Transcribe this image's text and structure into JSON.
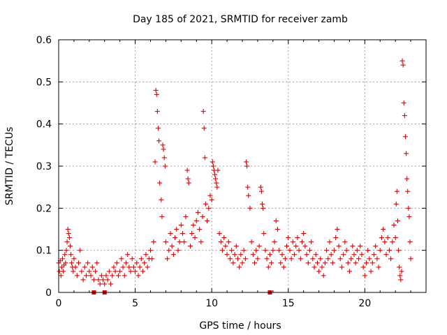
{
  "chart_data": {
    "type": "scatter",
    "title": "Day 185 of 2021, SRMTID for receiver zamb",
    "xlabel": "GPS time / hours",
    "ylabel": "SRMTID / TECUs",
    "xlim": [
      0,
      24
    ],
    "ylim": [
      0,
      0.6
    ],
    "xticks": [
      0,
      5,
      10,
      15,
      20
    ],
    "yticks": [
      0,
      0.1,
      0.2,
      0.3,
      0.4,
      0.5,
      0.6
    ],
    "xtick_labels": [
      "0",
      "5",
      "10",
      "15",
      "20"
    ],
    "ytick_labels": [
      "0",
      "0.1",
      "0.2",
      "0.3",
      "0.4",
      "0.5",
      "0.6"
    ],
    "grid": true,
    "marker": "plus",
    "series": [
      {
        "name": "SRMTID",
        "color": "#e00000",
        "points": [
          [
            0.0,
            0.07
          ],
          [
            0.05,
            0.05
          ],
          [
            0.1,
            0.075
          ],
          [
            0.15,
            0.04
          ],
          [
            0.2,
            0.06
          ],
          [
            0.25,
            0.08
          ],
          [
            0.3,
            0.05
          ],
          [
            0.35,
            0.065
          ],
          [
            0.4,
            0.09
          ],
          [
            0.45,
            0.07
          ],
          [
            0.5,
            0.1
          ],
          [
            0.55,
            0.12
          ],
          [
            0.6,
            0.15
          ],
          [
            0.65,
            0.14
          ],
          [
            0.7,
            0.13
          ],
          [
            0.75,
            0.11
          ],
          [
            0.8,
            0.09
          ],
          [
            0.85,
            0.07
          ],
          [
            0.9,
            0.06
          ],
          [
            0.95,
            0.05
          ],
          [
            1.0,
            0.08
          ],
          [
            1.1,
            0.06
          ],
          [
            1.2,
            0.04
          ],
          [
            1.3,
            0.07
          ],
          [
            1.4,
            0.1
          ],
          [
            1.5,
            0.05
          ],
          [
            1.6,
            0.03
          ],
          [
            1.7,
            0.06
          ],
          [
            1.8,
            0.04
          ],
          [
            1.9,
            0.07
          ],
          [
            2.0,
            0.05
          ],
          [
            2.1,
            0.04
          ],
          [
            2.2,
            0.06
          ],
          [
            2.3,
            0.03
          ],
          [
            2.4,
            0.05
          ],
          [
            2.5,
            0.07
          ],
          [
            2.6,
            0.03
          ],
          [
            2.7,
            0.02
          ],
          [
            2.8,
            0.04
          ],
          [
            2.9,
            0.03
          ],
          [
            3.0,
            0.02
          ],
          [
            3.1,
            0.04
          ],
          [
            3.2,
            0.03
          ],
          [
            3.3,
            0.05
          ],
          [
            3.4,
            0.02
          ],
          [
            3.5,
            0.04
          ],
          [
            3.6,
            0.06
          ],
          [
            3.7,
            0.05
          ],
          [
            3.8,
            0.07
          ],
          [
            3.9,
            0.04
          ],
          [
            4.0,
            0.05
          ],
          [
            4.1,
            0.08
          ],
          [
            4.2,
            0.06
          ],
          [
            4.3,
            0.04
          ],
          [
            4.4,
            0.07
          ],
          [
            4.5,
            0.09
          ],
          [
            4.6,
            0.06
          ],
          [
            4.7,
            0.05
          ],
          [
            4.8,
            0.08
          ],
          [
            4.9,
            0.06
          ],
          [
            5.0,
            0.05
          ],
          [
            5.1,
            0.07
          ],
          [
            5.2,
            0.04
          ],
          [
            5.3,
            0.06
          ],
          [
            5.4,
            0.08
          ],
          [
            5.5,
            0.05
          ],
          [
            5.6,
            0.07
          ],
          [
            5.7,
            0.09
          ],
          [
            5.8,
            0.06
          ],
          [
            5.9,
            0.08
          ],
          [
            6.0,
            0.1
          ],
          [
            6.1,
            0.08
          ],
          [
            6.2,
            0.12
          ],
          [
            6.3,
            0.31
          ],
          [
            6.35,
            0.48
          ],
          [
            6.4,
            0.47
          ],
          [
            6.45,
            0.43
          ],
          [
            6.5,
            0.39
          ],
          [
            6.55,
            0.36
          ],
          [
            6.6,
            0.26
          ],
          [
            6.7,
            0.22
          ],
          [
            6.75,
            0.18
          ],
          [
            6.8,
            0.35
          ],
          [
            6.85,
            0.34
          ],
          [
            6.9,
            0.32
          ],
          [
            6.95,
            0.3
          ],
          [
            7.0,
            0.12
          ],
          [
            7.1,
            0.08
          ],
          [
            7.2,
            0.1
          ],
          [
            7.3,
            0.14
          ],
          [
            7.4,
            0.11
          ],
          [
            7.5,
            0.09
          ],
          [
            7.6,
            0.13
          ],
          [
            7.7,
            0.15
          ],
          [
            7.8,
            0.1
          ],
          [
            7.9,
            0.12
          ],
          [
            8.0,
            0.16
          ],
          [
            8.1,
            0.14
          ],
          [
            8.2,
            0.12
          ],
          [
            8.3,
            0.18
          ],
          [
            8.4,
            0.29
          ],
          [
            8.45,
            0.27
          ],
          [
            8.5,
            0.26
          ],
          [
            8.6,
            0.11
          ],
          [
            8.7,
            0.14
          ],
          [
            8.8,
            0.16
          ],
          [
            8.9,
            0.13
          ],
          [
            9.0,
            0.17
          ],
          [
            9.1,
            0.19
          ],
          [
            9.2,
            0.15
          ],
          [
            9.3,
            0.12
          ],
          [
            9.4,
            0.18
          ],
          [
            9.45,
            0.43
          ],
          [
            9.5,
            0.39
          ],
          [
            9.55,
            0.32
          ],
          [
            9.6,
            0.21
          ],
          [
            9.7,
            0.17
          ],
          [
            9.8,
            0.2
          ],
          [
            9.9,
            0.23
          ],
          [
            10.0,
            0.22
          ],
          [
            10.05,
            0.31
          ],
          [
            10.1,
            0.3
          ],
          [
            10.15,
            0.29
          ],
          [
            10.2,
            0.28
          ],
          [
            10.25,
            0.27
          ],
          [
            10.3,
            0.26
          ],
          [
            10.35,
            0.25
          ],
          [
            10.4,
            0.29
          ],
          [
            10.5,
            0.14
          ],
          [
            10.6,
            0.12
          ],
          [
            10.7,
            0.1
          ],
          [
            10.8,
            0.13
          ],
          [
            10.9,
            0.11
          ],
          [
            11.0,
            0.09
          ],
          [
            11.1,
            0.12
          ],
          [
            11.2,
            0.08
          ],
          [
            11.3,
            0.1
          ],
          [
            11.4,
            0.07
          ],
          [
            11.5,
            0.09
          ],
          [
            11.6,
            0.11
          ],
          [
            11.7,
            0.08
          ],
          [
            11.8,
            0.06
          ],
          [
            11.9,
            0.09
          ],
          [
            12.0,
            0.07
          ],
          [
            12.1,
            0.1
          ],
          [
            12.2,
            0.08
          ],
          [
            12.25,
            0.31
          ],
          [
            12.3,
            0.3
          ],
          [
            12.35,
            0.25
          ],
          [
            12.4,
            0.23
          ],
          [
            12.5,
            0.2
          ],
          [
            12.6,
            0.12
          ],
          [
            12.7,
            0.09
          ],
          [
            12.8,
            0.07
          ],
          [
            12.9,
            0.1
          ],
          [
            13.0,
            0.08
          ],
          [
            13.1,
            0.11
          ],
          [
            13.2,
            0.25
          ],
          [
            13.25,
            0.24
          ],
          [
            13.3,
            0.21
          ],
          [
            13.35,
            0.2
          ],
          [
            13.4,
            0.14
          ],
          [
            13.5,
            0.1
          ],
          [
            13.6,
            0.08
          ],
          [
            13.7,
            0.06
          ],
          [
            13.8,
            0.09
          ],
          [
            13.9,
            0.07
          ],
          [
            14.0,
            0.1
          ],
          [
            14.1,
            0.12
          ],
          [
            14.2,
            0.17
          ],
          [
            14.3,
            0.15
          ],
          [
            14.4,
            0.1
          ],
          [
            14.5,
            0.07
          ],
          [
            14.6,
            0.09
          ],
          [
            14.7,
            0.06
          ],
          [
            14.8,
            0.08
          ],
          [
            14.9,
            0.11
          ],
          [
            15.0,
            0.13
          ],
          [
            15.1,
            0.1
          ],
          [
            15.2,
            0.08
          ],
          [
            15.3,
            0.12
          ],
          [
            15.4,
            0.09
          ],
          [
            15.5,
            0.11
          ],
          [
            15.6,
            0.13
          ],
          [
            15.7,
            0.1
          ],
          [
            15.8,
            0.08
          ],
          [
            15.9,
            0.12
          ],
          [
            16.0,
            0.14
          ],
          [
            16.1,
            0.11
          ],
          [
            16.2,
            0.09
          ],
          [
            16.3,
            0.07
          ],
          [
            16.4,
            0.1
          ],
          [
            16.5,
            0.12
          ],
          [
            16.6,
            0.08
          ],
          [
            16.7,
            0.06
          ],
          [
            16.8,
            0.09
          ],
          [
            16.9,
            0.07
          ],
          [
            17.0,
            0.05
          ],
          [
            17.1,
            0.08
          ],
          [
            17.2,
            0.06
          ],
          [
            17.3,
            0.04
          ],
          [
            17.4,
            0.07
          ],
          [
            17.5,
            0.1
          ],
          [
            17.6,
            0.08
          ],
          [
            17.7,
            0.12
          ],
          [
            17.8,
            0.09
          ],
          [
            17.9,
            0.07
          ],
          [
            18.0,
            0.1
          ],
          [
            18.1,
            0.13
          ],
          [
            18.2,
            0.15
          ],
          [
            18.3,
            0.11
          ],
          [
            18.4,
            0.08
          ],
          [
            18.5,
            0.06
          ],
          [
            18.6,
            0.09
          ],
          [
            18.7,
            0.12
          ],
          [
            18.8,
            0.1
          ],
          [
            18.9,
            0.07
          ],
          [
            19.0,
            0.05
          ],
          [
            19.1,
            0.08
          ],
          [
            19.2,
            0.11
          ],
          [
            19.3,
            0.09
          ],
          [
            19.4,
            0.07
          ],
          [
            19.5,
            0.1
          ],
          [
            19.6,
            0.08
          ],
          [
            19.7,
            0.11
          ],
          [
            19.8,
            0.09
          ],
          [
            19.9,
            0.06
          ],
          [
            20.0,
            0.04
          ],
          [
            20.1,
            0.07
          ],
          [
            20.2,
            0.1
          ],
          [
            20.3,
            0.08
          ],
          [
            20.4,
            0.05
          ],
          [
            20.5,
            0.07
          ],
          [
            20.6,
            0.09
          ],
          [
            20.7,
            0.11
          ],
          [
            20.8,
            0.08
          ],
          [
            20.9,
            0.06
          ],
          [
            21.0,
            0.1
          ],
          [
            21.1,
            0.13
          ],
          [
            21.2,
            0.15
          ],
          [
            21.3,
            0.12
          ],
          [
            21.4,
            0.09
          ],
          [
            21.5,
            0.13
          ],
          [
            21.6,
            0.1
          ],
          [
            21.7,
            0.08
          ],
          [
            21.8,
            0.12
          ],
          [
            21.9,
            0.16
          ],
          [
            22.0,
            0.13
          ],
          [
            22.05,
            0.21
          ],
          [
            22.1,
            0.24
          ],
          [
            22.15,
            0.17
          ],
          [
            22.2,
            0.1
          ],
          [
            22.25,
            0.06
          ],
          [
            22.3,
            0.04
          ],
          [
            22.35,
            0.03
          ],
          [
            22.4,
            0.05
          ],
          [
            22.45,
            0.55
          ],
          [
            22.5,
            0.54
          ],
          [
            22.55,
            0.45
          ],
          [
            22.6,
            0.42
          ],
          [
            22.65,
            0.37
          ],
          [
            22.7,
            0.33
          ],
          [
            22.75,
            0.27
          ],
          [
            22.8,
            0.24
          ],
          [
            22.85,
            0.2
          ],
          [
            22.9,
            0.18
          ],
          [
            22.95,
            0.12
          ],
          [
            23.0,
            0.08
          ]
        ],
        "zero_markers": [
          2.3,
          3.0,
          13.8
        ]
      }
    ]
  }
}
